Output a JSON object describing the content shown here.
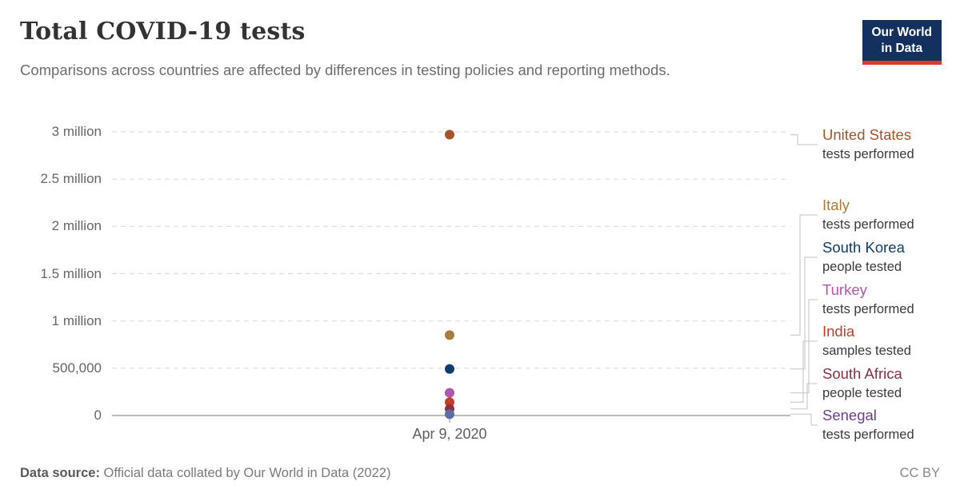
{
  "header": {
    "title": "Total COVID-19 tests",
    "subtitle": "Comparisons across countries are affected by differences in testing policies and reporting methods.",
    "logo": {
      "line1": "Our World",
      "line2": "in Data",
      "bg_color": "#13305F",
      "accent_color": "#DC3A2B"
    }
  },
  "chart_data": {
    "type": "scatter",
    "title": "Total COVID-19 tests",
    "x": [
      "Apr 9, 2020"
    ],
    "xlabel": "",
    "ylabel": "",
    "ylim": [
      0,
      3000000
    ],
    "grid": "horizontal dashed",
    "legend_position": "right",
    "yticks": [
      {
        "value": 0,
        "label": "0"
      },
      {
        "value": 500000,
        "label": "500,000"
      },
      {
        "value": 1000000,
        "label": "1 million"
      },
      {
        "value": 1500000,
        "label": "1.5 million"
      },
      {
        "value": 2000000,
        "label": "2 million"
      },
      {
        "value": 2500000,
        "label": "2.5 million"
      },
      {
        "value": 3000000,
        "label": "3 million"
      }
    ],
    "series": [
      {
        "name": "United States",
        "measure": "tests performed",
        "value": 2970000,
        "color": "#A4552A"
      },
      {
        "name": "Italy",
        "measure": "tests performed",
        "value": 850000,
        "color": "#A87E3C"
      },
      {
        "name": "South Korea",
        "measure": "people tested",
        "value": 492000,
        "color": "#0E3E6E"
      },
      {
        "name": "Turkey",
        "measure": "tests performed",
        "value": 240000,
        "color": "#AC58AC"
      },
      {
        "name": "India",
        "measure": "samples tested",
        "value": 141000,
        "color": "#C33D26"
      },
      {
        "name": "South Africa",
        "measure": "people tested",
        "value": 70000,
        "color": "#8E2F44"
      },
      {
        "name": "Senegal",
        "measure": "tests performed",
        "value": 14000,
        "color": "#6D3E91",
        "dot_color": "#5C6DA6"
      }
    ]
  },
  "footer": {
    "source_label": "Data source:",
    "source_text": " Official data collated by Our World in Data (2022)",
    "license": "CC BY"
  }
}
